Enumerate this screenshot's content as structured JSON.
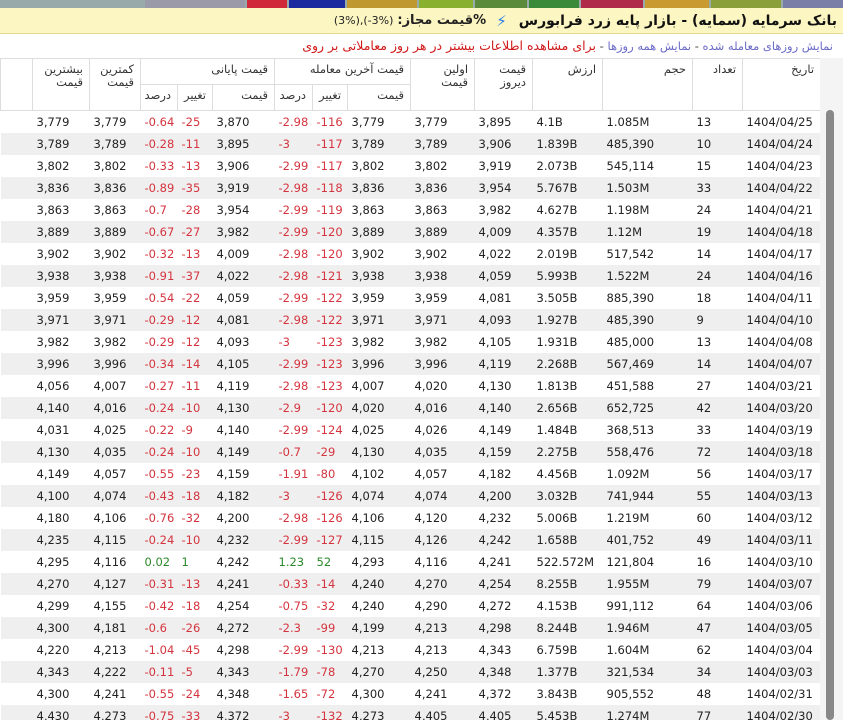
{
  "colors": {
    "tabs": [
      "#7a7fa8",
      "#8a9f3a",
      "#c89a30",
      "#b02a4a",
      "#3a8a3a",
      "#5a8a3a",
      "#8ab030",
      "#c09830",
      "#1c2aa0",
      "#d02a3a",
      "#9a9aa8"
    ],
    "negative": "#d4343e",
    "positive": "#2a8a2a",
    "title_bar": "#fcf6c2"
  },
  "header": {
    "title": "بانک سرمایه (سمایه) - بازار پایه زرد فرابورس",
    "icon": "lightning-icon",
    "allowed_label": "%قیمت مجاز:",
    "allowed_value": "(3%),(-3%)"
  },
  "links": {
    "traded_days": "نمایش روزهای معامله شده",
    "all_days": "نمایش همه روزها",
    "info": "برای مشاهده اطلاعات بیشتر در هر روز معاملاتی بر روی"
  },
  "columns": {
    "date": "تاریخ",
    "count": "تعداد",
    "volume": "حجم",
    "value": "ارزش",
    "yesterday": "قیمت دیروز",
    "first": "اولین قیمت",
    "last_group": "قیمت آخرین معامله",
    "close_group": "قیمت پایانی",
    "price": "قیمت",
    "change": "تغییر",
    "percent": "درصد",
    "low": "کمترین قیمت",
    "high": "بیشترین قیمت"
  },
  "rows": [
    [
      "1404/04/25",
      "13",
      "1.085M",
      "4.1B",
      "3,895",
      "3,779",
      "3,779",
      "-116",
      "-2.98",
      "3,870",
      "-25",
      "-0.64",
      "3,779",
      "3,779"
    ],
    [
      "1404/04/24",
      "10",
      "485,390",
      "1.839B",
      "3,906",
      "3,789",
      "3,789",
      "-117",
      "-3",
      "3,895",
      "-11",
      "-0.28",
      "3,789",
      "3,789"
    ],
    [
      "1404/04/23",
      "15",
      "545,114",
      "2.073B",
      "3,919",
      "3,802",
      "3,802",
      "-117",
      "-2.99",
      "3,906",
      "-13",
      "-0.33",
      "3,802",
      "3,802"
    ],
    [
      "1404/04/22",
      "33",
      "1.503M",
      "5.767B",
      "3,954",
      "3,836",
      "3,836",
      "-118",
      "-2.98",
      "3,919",
      "-35",
      "-0.89",
      "3,836",
      "3,836"
    ],
    [
      "1404/04/21",
      "24",
      "1.198M",
      "4.627B",
      "3,982",
      "3,863",
      "3,863",
      "-119",
      "-2.99",
      "3,954",
      "-28",
      "-0.7",
      "3,863",
      "3,863"
    ],
    [
      "1404/04/18",
      "19",
      "1.12M",
      "4.357B",
      "4,009",
      "3,889",
      "3,889",
      "-120",
      "-2.99",
      "3,982",
      "-27",
      "-0.67",
      "3,889",
      "3,889"
    ],
    [
      "1404/04/17",
      "14",
      "517,542",
      "2.019B",
      "4,022",
      "3,902",
      "3,902",
      "-120",
      "-2.98",
      "4,009",
      "-13",
      "-0.32",
      "3,902",
      "3,902"
    ],
    [
      "1404/04/16",
      "24",
      "1.522M",
      "5.993B",
      "4,059",
      "3,938",
      "3,938",
      "-121",
      "-2.98",
      "4,022",
      "-37",
      "-0.91",
      "3,938",
      "3,938"
    ],
    [
      "1404/04/11",
      "18",
      "885,390",
      "3.505B",
      "4,081",
      "3,959",
      "3,959",
      "-122",
      "-2.99",
      "4,059",
      "-22",
      "-0.54",
      "3,959",
      "3,959"
    ],
    [
      "1404/04/10",
      "9",
      "485,390",
      "1.927B",
      "4,093",
      "3,971",
      "3,971",
      "-122",
      "-2.98",
      "4,081",
      "-12",
      "-0.29",
      "3,971",
      "3,971"
    ],
    [
      "1404/04/08",
      "13",
      "485,000",
      "1.931B",
      "4,105",
      "3,982",
      "3,982",
      "-123",
      "-3",
      "4,093",
      "-12",
      "-0.29",
      "3,982",
      "3,982"
    ],
    [
      "1404/04/07",
      "14",
      "567,469",
      "2.268B",
      "4,119",
      "3,996",
      "3,996",
      "-123",
      "-2.99",
      "4,105",
      "-14",
      "-0.34",
      "3,996",
      "3,996"
    ],
    [
      "1404/03/21",
      "27",
      "451,588",
      "1.813B",
      "4,130",
      "4,020",
      "4,007",
      "-123",
      "-2.98",
      "4,119",
      "-11",
      "-0.27",
      "4,007",
      "4,056"
    ],
    [
      "1404/03/20",
      "42",
      "652,725",
      "2.656B",
      "4,140",
      "4,016",
      "4,020",
      "-120",
      "-2.9",
      "4,130",
      "-10",
      "-0.24",
      "4,016",
      "4,140"
    ],
    [
      "1404/03/19",
      "33",
      "368,513",
      "1.484B",
      "4,149",
      "4,026",
      "4,025",
      "-124",
      "-2.99",
      "4,140",
      "-9",
      "-0.22",
      "4,025",
      "4,031"
    ],
    [
      "1404/03/18",
      "72",
      "558,476",
      "2.275B",
      "4,159",
      "4,035",
      "4,130",
      "-29",
      "-0.7",
      "4,149",
      "-10",
      "-0.24",
      "4,035",
      "4,130"
    ],
    [
      "1404/03/17",
      "56",
      "1.092M",
      "4.456B",
      "4,182",
      "4,057",
      "4,102",
      "-80",
      "-1.91",
      "4,159",
      "-23",
      "-0.55",
      "4,057",
      "4,149"
    ],
    [
      "1404/03/13",
      "55",
      "741,944",
      "3.032B",
      "4,200",
      "4,074",
      "4,074",
      "-126",
      "-3",
      "4,182",
      "-18",
      "-0.43",
      "4,074",
      "4,100"
    ],
    [
      "1404/03/12",
      "60",
      "1.219M",
      "5.006B",
      "4,232",
      "4,120",
      "4,106",
      "-126",
      "-2.98",
      "4,200",
      "-32",
      "-0.76",
      "4,106",
      "4,180"
    ],
    [
      "1404/03/11",
      "49",
      "401,752",
      "1.658B",
      "4,242",
      "4,126",
      "4,115",
      "-127",
      "-2.99",
      "4,232",
      "-10",
      "-0.24",
      "4,115",
      "4,235"
    ],
    [
      "1404/03/10",
      "16",
      "121,804",
      "522.572M",
      "4,241",
      "4,116",
      "4,293",
      "52",
      "1.23",
      "4,242",
      "1",
      "0.02",
      "4,116",
      "4,295"
    ],
    [
      "1404/03/07",
      "79",
      "1.955M",
      "8.255B",
      "4,254",
      "4,270",
      "4,240",
      "-14",
      "-0.33",
      "4,241",
      "-13",
      "-0.31",
      "4,127",
      "4,270"
    ],
    [
      "1404/03/06",
      "64",
      "991,112",
      "4.153B",
      "4,272",
      "4,290",
      "4,240",
      "-32",
      "-0.75",
      "4,254",
      "-18",
      "-0.42",
      "4,155",
      "4,299"
    ],
    [
      "1404/03/05",
      "47",
      "1.946M",
      "8.244B",
      "4,298",
      "4,213",
      "4,199",
      "-99",
      "-2.3",
      "4,272",
      "-26",
      "-0.6",
      "4,181",
      "4,300"
    ],
    [
      "1404/03/04",
      "62",
      "1.604M",
      "6.759B",
      "4,343",
      "4,213",
      "4,213",
      "-130",
      "-2.99",
      "4,298",
      "-45",
      "-1.04",
      "4,213",
      "4,220"
    ],
    [
      "1404/03/03",
      "34",
      "321,534",
      "1.377B",
      "4,348",
      "4,250",
      "4,270",
      "-78",
      "-1.79",
      "4,343",
      "-5",
      "-0.11",
      "4,222",
      "4,343"
    ],
    [
      "1404/02/31",
      "48",
      "905,552",
      "3.843B",
      "4,372",
      "4,241",
      "4,300",
      "-72",
      "-1.65",
      "4,348",
      "-24",
      "-0.55",
      "4,241",
      "4,300"
    ],
    [
      "1404/02/30",
      "77",
      "1.274M",
      "5.453B",
      "4,405",
      "4,405",
      "4,273",
      "-132",
      "-3",
      "4,372",
      "-33",
      "-0.75",
      "4,273",
      "4,430"
    ]
  ]
}
